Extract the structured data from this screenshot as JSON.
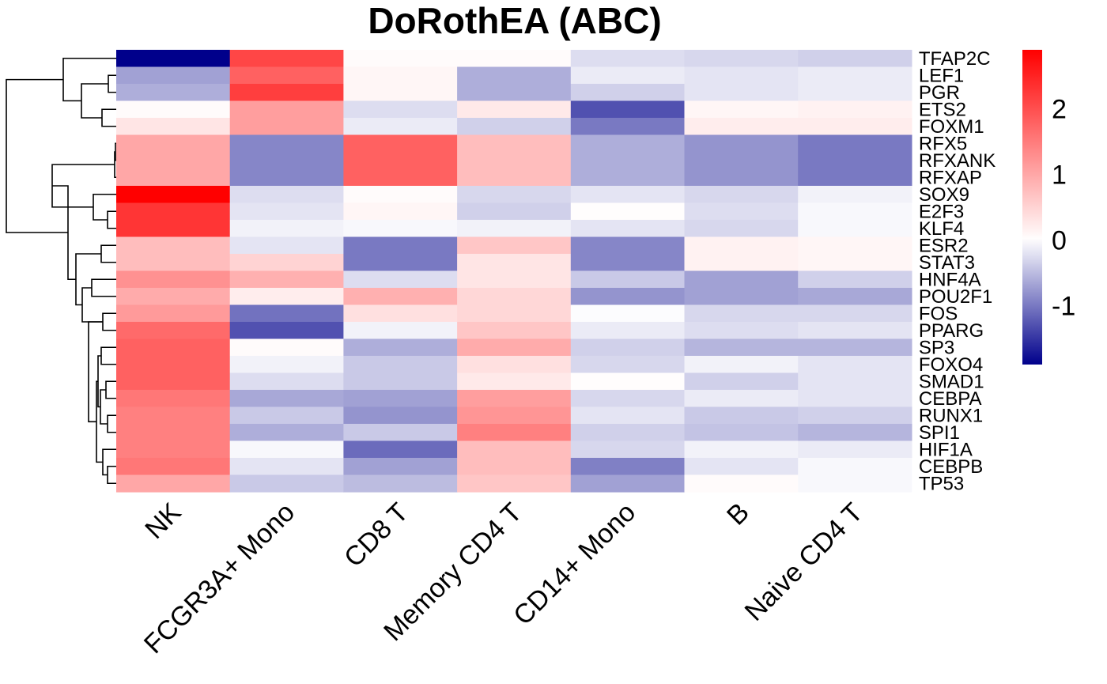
{
  "chart_data": {
    "type": "heatmap",
    "title": "DoRothEA (ABC)",
    "columns": [
      "NK",
      "FCGR3A+ Mono",
      "CD8 T",
      "Memory CD4 T",
      "CD14+ Mono",
      "B",
      "Naive CD4 T"
    ],
    "rows": [
      "TFAP2C",
      "LEF1",
      "PGR",
      "ETS2",
      "FOXM1",
      "RFX5",
      "RFXANK",
      "RFXAP",
      "SOX9",
      "E2F3",
      "KLF4",
      "ESR2",
      "STAT3",
      "HNF4A",
      "POU2F1",
      "FOS",
      "PPARG",
      "SP3",
      "FOXO4",
      "SMAD1",
      "CEBPA",
      "RUNX1",
      "SPI1",
      "HIF1A",
      "CEBPB",
      "TP53"
    ],
    "values": [
      [
        -1.9,
        2.1,
        0.05,
        0.05,
        -0.25,
        -0.3,
        -0.35
      ],
      [
        -0.7,
        1.8,
        0.1,
        -0.6,
        -0.15,
        -0.2,
        -0.15
      ],
      [
        -0.6,
        2.2,
        0.1,
        -0.6,
        -0.35,
        -0.2,
        -0.15
      ],
      [
        0.05,
        1.1,
        -0.25,
        0.25,
        -1.3,
        0.1,
        0.15
      ],
      [
        0.3,
        1.1,
        -0.15,
        -0.35,
        -1.0,
        0.2,
        0.2
      ],
      [
        1.0,
        -0.9,
        1.8,
        0.75,
        -0.6,
        -0.8,
        -1.0
      ],
      [
        1.0,
        -0.9,
        1.8,
        0.75,
        -0.6,
        -0.8,
        -1.0
      ],
      [
        1.0,
        -0.9,
        1.8,
        0.75,
        -0.6,
        -0.8,
        -1.0
      ],
      [
        2.9,
        -0.25,
        0.05,
        -0.3,
        -0.2,
        -0.3,
        -0.1
      ],
      [
        2.3,
        -0.2,
        0.1,
        -0.35,
        0.02,
        -0.25,
        -0.05
      ],
      [
        2.3,
        -0.1,
        -0.05,
        -0.1,
        -0.2,
        -0.3,
        -0.05
      ],
      [
        0.75,
        -0.2,
        -1.0,
        0.65,
        -0.9,
        0.15,
        0.1
      ],
      [
        0.75,
        0.5,
        -1.0,
        0.3,
        -0.9,
        0.15,
        0.1
      ],
      [
        1.25,
        0.9,
        -0.25,
        0.3,
        -0.4,
        -0.7,
        -0.35
      ],
      [
        0.95,
        0.2,
        0.9,
        0.45,
        -0.8,
        -0.7,
        -0.65
      ],
      [
        1.15,
        -1.05,
        0.35,
        0.45,
        -0.02,
        -0.3,
        -0.3
      ],
      [
        1.7,
        -1.3,
        -0.1,
        0.65,
        -0.15,
        -0.25,
        -0.2
      ],
      [
        1.8,
        0.05,
        -0.6,
        0.95,
        -0.35,
        -0.55,
        -0.55
      ],
      [
        1.8,
        -0.1,
        -0.4,
        0.35,
        -0.3,
        -0.1,
        -0.2
      ],
      [
        1.8,
        -0.25,
        -0.4,
        0.25,
        0.02,
        -0.35,
        -0.2
      ],
      [
        1.55,
        -0.65,
        -0.7,
        1.1,
        -0.3,
        -0.15,
        -0.2
      ],
      [
        1.45,
        -0.4,
        -0.8,
        1.2,
        -0.2,
        -0.4,
        -0.35
      ],
      [
        1.45,
        -0.6,
        -0.4,
        1.45,
        -0.35,
        -0.45,
        -0.55
      ],
      [
        1.45,
        -0.05,
        -1.1,
        0.75,
        -0.3,
        -0.1,
        -0.15
      ],
      [
        1.55,
        -0.2,
        -0.7,
        0.75,
        -0.95,
        -0.2,
        -0.05
      ],
      [
        1.0,
        -0.4,
        -0.5,
        0.65,
        -0.7,
        0.05,
        -0.05
      ]
    ],
    "colorscale": {
      "low": "#00008B",
      "mid": "#FFFFFF",
      "high": "#FF0000",
      "min": -1.9,
      "center": 0,
      "max": 2.9
    },
    "legend": {
      "ticks": [
        2,
        1,
        0,
        -1
      ],
      "tick_labels": [
        "2",
        "1",
        "0",
        "-1"
      ],
      "placement": "right"
    },
    "row_dendrogram": "left",
    "grid": false
  }
}
